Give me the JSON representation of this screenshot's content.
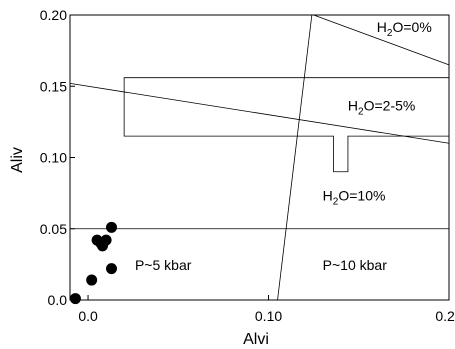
{
  "chart_data": {
    "type": "scatter",
    "xlabel": "Alvi",
    "ylabel": "Aliv",
    "xlim": [
      -0.01,
      0.2
    ],
    "ylim": [
      0,
      0.2
    ],
    "x_ticks": [
      {
        "value": 0.0,
        "label": "0.0"
      },
      {
        "value": 0.1,
        "label": "0.10"
      },
      {
        "value": 0.2,
        "label": "0.20"
      }
    ],
    "y_ticks": [
      {
        "value": 0.0,
        "label": "0.0"
      },
      {
        "value": 0.05,
        "label": "0.05"
      },
      {
        "value": 0.1,
        "label": "0.10"
      },
      {
        "value": 0.15,
        "label": "0.15"
      },
      {
        "value": 0.2,
        "label": "0.20"
      }
    ],
    "grid": false,
    "points": [
      {
        "x": -0.007,
        "y": 0.001
      },
      {
        "x": 0.002,
        "y": 0.014
      },
      {
        "x": 0.005,
        "y": 0.042
      },
      {
        "x": 0.007,
        "y": 0.04
      },
      {
        "x": 0.008,
        "y": 0.038
      },
      {
        "x": 0.01,
        "y": 0.042
      },
      {
        "x": 0.013,
        "y": 0.051
      },
      {
        "x": 0.013,
        "y": 0.022
      }
    ],
    "lines": [
      {
        "from": [
          -0.01,
          0.05
        ],
        "to": [
          0.2,
          0.05
        ]
      },
      {
        "from": [
          0.105,
          0.0
        ],
        "to": [
          0.124,
          0.2
        ]
      },
      {
        "from": [
          -0.01,
          0.152
        ],
        "to": [
          0.2,
          0.11
        ]
      },
      {
        "from": [
          0.125,
          0.2
        ],
        "to": [
          0.2,
          0.165
        ]
      }
    ],
    "region_outline": [
      [
        0.02,
        0.156
      ],
      [
        0.2,
        0.156
      ],
      [
        0.2,
        0.115
      ],
      [
        0.144,
        0.115
      ],
      [
        0.144,
        0.09
      ],
      [
        0.136,
        0.09
      ],
      [
        0.136,
        0.115
      ],
      [
        0.02,
        0.115
      ]
    ],
    "annotations": [
      {
        "base": "H",
        "sub": "2",
        "rest": "O=0%",
        "x": 0.16,
        "y": 0.188
      },
      {
        "base": "H",
        "sub": "2",
        "rest": "O=2-5%",
        "x": 0.144,
        "y": 0.133
      },
      {
        "base": "H",
        "sub": "2",
        "rest": "O=10%",
        "x": 0.13,
        "y": 0.07
      },
      {
        "text": "P~5 kbar",
        "x": 0.026,
        "y": 0.021
      },
      {
        "text": "P~10 kbar",
        "x": 0.13,
        "y": 0.021
      }
    ]
  }
}
